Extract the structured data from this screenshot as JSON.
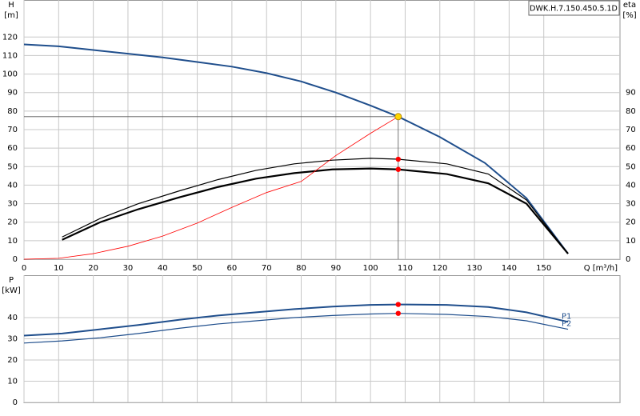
{
  "chart_data": [
    {
      "type": "line",
      "title": "DWK.H.7.150.450.5.1D",
      "x_label": "Q [m³/h]",
      "y_label": "H",
      "y_unit": "[m]",
      "y2_label": "eta",
      "y2_unit": "[%]",
      "xlim": [
        0,
        172
      ],
      "xticks": [
        0,
        10,
        20,
        30,
        40,
        50,
        60,
        70,
        80,
        90,
        100,
        110,
        120,
        130,
        140,
        150
      ],
      "ylim": [
        0,
        140
      ],
      "yticks": [
        0,
        10,
        20,
        30,
        40,
        50,
        60,
        70,
        80,
        90,
        100,
        110,
        120
      ],
      "y2lim": [
        0,
        140
      ],
      "y2ticks": [
        0,
        10,
        20,
        30,
        40,
        50,
        60,
        70,
        80,
        90
      ],
      "grid": true,
      "series": [
        {
          "color": "#1f4e8c",
          "width": 2,
          "x": [
            0,
            10,
            20,
            30,
            40,
            50,
            60,
            70,
            80,
            90,
            100,
            108,
            120,
            133,
            145,
            157
          ],
          "values": [
            116,
            115,
            113,
            111,
            109,
            106.5,
            104,
            100.5,
            96,
            90,
            83,
            77,
            66,
            52,
            33,
            3
          ]
        },
        {
          "color": "#000000",
          "width": 1.2,
          "axis": "y2",
          "x": [
            11,
            22,
            33,
            45,
            56,
            67,
            78,
            89,
            100,
            108,
            122,
            134,
            145,
            157
          ],
          "values": [
            12,
            22,
            30,
            37,
            43,
            48,
            51.5,
            53.5,
            54.5,
            54,
            51.5,
            46,
            32,
            3
          ]
        },
        {
          "color": "#000000",
          "width": 2.2,
          "axis": "y2",
          "x": [
            11,
            22,
            33,
            45,
            56,
            67,
            78,
            89,
            100,
            108,
            122,
            134,
            145,
            157
          ],
          "values": [
            10.5,
            20,
            27,
            33.5,
            39,
            43.5,
            46.5,
            48.5,
            49,
            48.5,
            46,
            41,
            30,
            3
          ]
        },
        {
          "color": "#ff0000",
          "width": 0.8,
          "x": [
            0,
            10,
            20,
            30,
            40,
            50,
            60,
            70,
            80,
            90,
            100,
            108
          ],
          "values": [
            0,
            0.5,
            3,
            7,
            12.5,
            19.5,
            28,
            36,
            42,
            56,
            68,
            77
          ]
        }
      ],
      "points": [
        {
          "x": 108,
          "y": 77,
          "color": "#ffd700"
        },
        {
          "x": 108,
          "y": 54,
          "color": "#ff0000"
        },
        {
          "x": 108,
          "y": 48.5,
          "color": "#ff0000"
        }
      ]
    },
    {
      "type": "line",
      "y_label": "P",
      "y_unit": "[kW]",
      "xlim": [
        0,
        172
      ],
      "ylim": [
        0,
        60
      ],
      "yticks": [
        0,
        10,
        20,
        30,
        40
      ],
      "grid": true,
      "series": [
        {
          "name": "P1",
          "color": "#1f4e8c",
          "width": 2,
          "x": [
            0,
            11,
            22,
            33,
            45,
            56,
            67,
            78,
            89,
            100,
            108,
            122,
            134,
            145,
            157
          ],
          "values": [
            31.5,
            32.5,
            34.5,
            36.5,
            39,
            41,
            42.5,
            44,
            45.2,
            46,
            46.2,
            46,
            45,
            42.5,
            38
          ]
        },
        {
          "name": "P2",
          "color": "#1f4e8c",
          "width": 1.2,
          "x": [
            0,
            11,
            22,
            33,
            45,
            56,
            67,
            78,
            89,
            100,
            108,
            122,
            134,
            145,
            157
          ],
          "values": [
            28,
            29,
            30.5,
            32.5,
            35,
            37,
            38.5,
            40,
            41,
            41.7,
            42,
            41.5,
            40.5,
            38.5,
            34.5
          ]
        }
      ],
      "points": [
        {
          "x": 108,
          "y": 46.2,
          "color": "#ff0000"
        },
        {
          "x": 108,
          "y": 42,
          "color": "#ff0000"
        }
      ]
    }
  ]
}
